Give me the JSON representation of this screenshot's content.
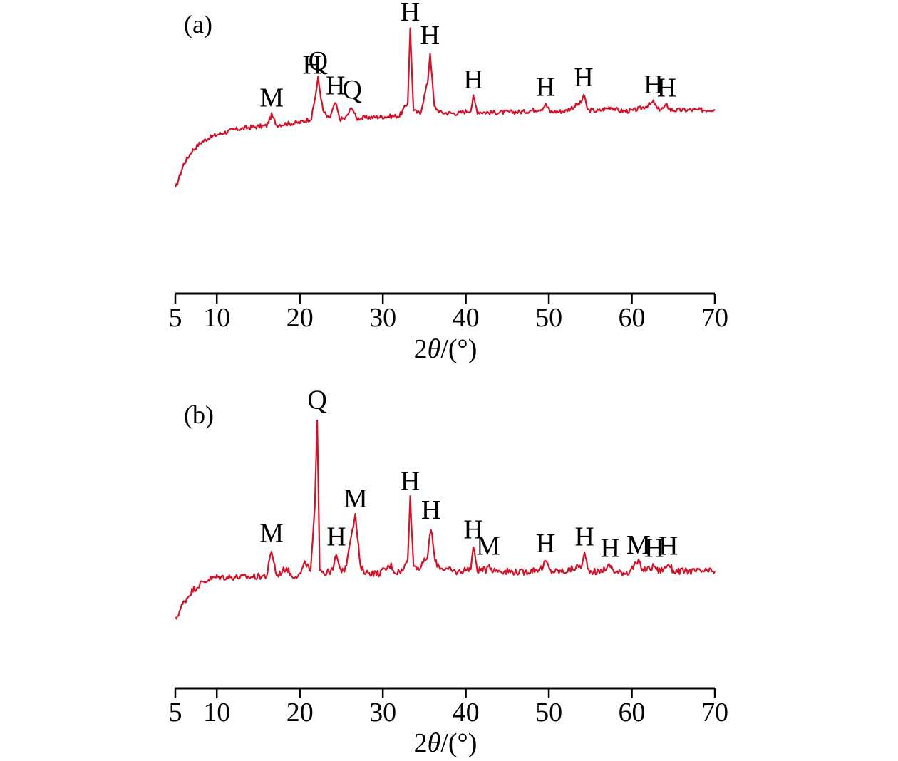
{
  "chart_data": [
    {
      "type": "line",
      "panel_label": "(a)",
      "xlabel": "2θ/(°)",
      "xlabel_parts": {
        "prefix": "2",
        "theta": "θ",
        "suffix": "/(°)"
      },
      "xlim": [
        5,
        70
      ],
      "xticks": [
        5,
        10,
        20,
        30,
        40,
        50,
        60,
        70
      ],
      "series": [
        {
          "color": "#d0142c",
          "x": [
            5,
            6,
            7,
            8,
            9,
            10,
            12,
            14,
            16,
            16.6,
            17.2,
            18,
            20,
            21.4,
            21.9,
            22.2,
            22.8,
            23.5,
            24.3,
            24.8,
            25.5,
            26.3,
            26.8,
            28,
            30,
            32,
            33.0,
            33.3,
            33.7,
            34.5,
            35.4,
            35.7,
            36.2,
            37,
            39,
            40.6,
            40.9,
            41.4,
            43,
            47,
            49.2,
            49.6,
            50.2,
            52,
            53.9,
            54.2,
            54.7,
            56,
            57.5,
            58.5,
            60,
            61,
            62.2,
            62.6,
            63.1,
            63.8,
            64.2,
            64.7,
            66,
            68,
            70
          ],
          "y": [
            1.0,
            4.0,
            5.6,
            6.6,
            7.2,
            7.6,
            8.2,
            8.5,
            8.7,
            10.0,
            8.8,
            8.9,
            9.1,
            9.6,
            12.5,
            14.5,
            10.5,
            9.5,
            11.5,
            9.5,
            9.6,
            11.0,
            9.6,
            9.7,
            9.8,
            9.9,
            11.5,
            20.5,
            10.5,
            10.2,
            14.0,
            17.6,
            11.0,
            10.3,
            10.2,
            10.6,
            12.2,
            10.4,
            10.3,
            10.4,
            10.8,
            11.3,
            10.4,
            10.5,
            11.5,
            12.5,
            10.6,
            10.5,
            11.0,
            10.5,
            10.5,
            10.8,
            11.3,
            11.6,
            10.7,
            10.8,
            11.2,
            10.6,
            10.6,
            10.6,
            10.7
          ]
        }
      ],
      "peak_labels": [
        {
          "text": "M",
          "x": 16.6,
          "y": 10.0
        },
        {
          "text": "H",
          "x": 21.5,
          "y": 14.0
        },
        {
          "text": "Q",
          "x": 22.2,
          "y": 14.5
        },
        {
          "text": "H",
          "x": 24.3,
          "y": 11.5
        },
        {
          "text": "Q",
          "x": 26.3,
          "y": 11.0
        },
        {
          "text": "H",
          "x": 33.3,
          "y": 20.5
        },
        {
          "text": "H",
          "x": 35.7,
          "y": 17.6
        },
        {
          "text": "H",
          "x": 40.9,
          "y": 12.2
        },
        {
          "text": "H",
          "x": 49.6,
          "y": 11.3
        },
        {
          "text": "H",
          "x": 54.2,
          "y": 12.5
        },
        {
          "text": "H",
          "x": 62.6,
          "y": 11.6
        },
        {
          "text": "H",
          "x": 64.2,
          "y": 11.2
        }
      ]
    },
    {
      "type": "line",
      "panel_label": "(b)",
      "xlabel": "2θ/(°)",
      "xlabel_parts": {
        "prefix": "2",
        "theta": "θ",
        "suffix": "/(°)"
      },
      "xlim": [
        5,
        70
      ],
      "xticks": [
        5,
        10,
        20,
        30,
        40,
        50,
        60,
        70
      ],
      "series": [
        {
          "color": "#d0142c",
          "x": [
            5,
            6,
            7,
            8,
            9,
            10,
            12,
            14,
            16,
            16.6,
            17.2,
            18.4,
            19,
            20,
            20.7,
            21.3,
            21.8,
            22.1,
            22.4,
            23,
            24.0,
            24.4,
            24.8,
            25.5,
            26.2,
            26.7,
            27.3,
            28,
            29.5,
            31.0,
            31.5,
            32.5,
            33.0,
            33.3,
            33.7,
            34.5,
            35.4,
            35.8,
            36.3,
            37,
            39,
            40.6,
            40.9,
            41.4,
            42.4,
            42.7,
            43.2,
            45,
            47,
            49.3,
            49.6,
            50.2,
            52,
            54.0,
            54.3,
            54.8,
            56,
            57.4,
            58,
            59.5,
            60.8,
            61.3,
            62.4,
            62.7,
            63.2,
            64.1,
            64.4,
            65,
            67,
            70
          ],
          "y": [
            0.5,
            2.0,
            3.0,
            3.6,
            4.0,
            4.2,
            4.2,
            4.2,
            4.3,
            6.5,
            4.3,
            5.0,
            4.3,
            4.4,
            5.5,
            4.6,
            10.0,
            18.0,
            5.0,
            4.5,
            4.8,
            6.2,
            4.8,
            4.9,
            8.0,
            9.5,
            5.0,
            4.6,
            4.5,
            5.2,
            4.6,
            4.8,
            6.0,
            11.0,
            5.2,
            5.0,
            6.0,
            8.5,
            5.5,
            5.0,
            4.6,
            5.0,
            6.8,
            4.8,
            4.8,
            5.4,
            4.8,
            4.7,
            4.6,
            5.0,
            5.6,
            4.7,
            4.7,
            5.2,
            6.2,
            4.8,
            4.6,
            5.2,
            4.6,
            4.6,
            5.5,
            4.8,
            5.0,
            5.2,
            4.7,
            5.0,
            5.4,
            4.7,
            4.7,
            4.7
          ]
        }
      ],
      "peak_labels": [
        {
          "text": "M",
          "x": 16.6,
          "y": 6.5
        },
        {
          "text": "Q",
          "x": 22.1,
          "y": 18.0
        },
        {
          "text": "H",
          "x": 24.4,
          "y": 6.2
        },
        {
          "text": "M",
          "x": 26.7,
          "y": 9.5
        },
        {
          "text": "H",
          "x": 33.3,
          "y": 11.0
        },
        {
          "text": "H",
          "x": 35.8,
          "y": 8.5
        },
        {
          "text": "H",
          "x": 40.9,
          "y": 6.8
        },
        {
          "text": "M",
          "x": 42.7,
          "y": 5.4
        },
        {
          "text": "H",
          "x": 49.6,
          "y": 5.6
        },
        {
          "text": "H",
          "x": 54.3,
          "y": 6.2
        },
        {
          "text": "H",
          "x": 57.4,
          "y": 5.2
        },
        {
          "text": "M",
          "x": 60.8,
          "y": 5.5
        },
        {
          "text": "H",
          "x": 62.7,
          "y": 5.2
        },
        {
          "text": "H",
          "x": 64.4,
          "y": 5.4
        }
      ]
    }
  ]
}
